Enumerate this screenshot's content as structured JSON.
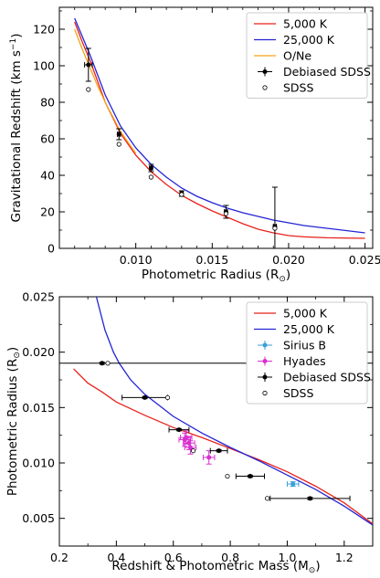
{
  "chart_data": [
    {
      "type": "line",
      "xlabel": "Photometric Radius (R",
      "xlabel_sub": "⊙",
      "xlabel_end": ")",
      "ylabel": "Gravitational Redshift (km s",
      "ylabel_sup": "−1",
      "ylabel_end": ")",
      "xlim": [
        0.005,
        0.0255
      ],
      "ylim": [
        0,
        132
      ],
      "xticks": [
        0.01,
        0.015,
        0.02,
        0.025
      ],
      "xtick_labels": [
        "0.010",
        "0.015",
        "0.020",
        "0.025"
      ],
      "yticks": [
        0,
        20,
        40,
        60,
        80,
        100,
        120
      ],
      "yticks_minor": [
        10,
        30,
        50,
        70,
        90,
        110,
        130
      ],
      "xticks_minor": [
        0.006,
        0.007,
        0.008,
        0.009,
        0.011,
        0.012,
        0.013,
        0.014,
        0.016,
        0.017,
        0.018,
        0.019,
        0.021,
        0.022,
        0.023,
        0.024
      ],
      "legend_position": "top-right",
      "series": [
        {
          "name": "5,000 K",
          "kind": "line",
          "color": "#e8211b",
          "x": [
            0.006,
            0.0065,
            0.007,
            0.008,
            0.009,
            0.01,
            0.011,
            0.012,
            0.013,
            0.014,
            0.015,
            0.016,
            0.017,
            0.018,
            0.019,
            0.02,
            0.021,
            0.0225,
            0.025
          ],
          "y": [
            124,
            113,
            103,
            80,
            63,
            51,
            42,
            35,
            29,
            24.5,
            20.5,
            17,
            13.5,
            10.5,
            8.5,
            7,
            6.3,
            5.8,
            5.5
          ]
        },
        {
          "name": "25,000 K",
          "kind": "line",
          "color": "#2424d6",
          "x": [
            0.006,
            0.0065,
            0.007,
            0.008,
            0.009,
            0.01,
            0.011,
            0.012,
            0.013,
            0.014,
            0.015,
            0.016,
            0.017,
            0.018,
            0.019,
            0.02,
            0.021,
            0.0225,
            0.025
          ],
          "y": [
            126,
            116,
            106,
            84,
            67,
            55,
            46,
            39,
            33,
            28.5,
            25,
            22,
            19.5,
            17.5,
            15.5,
            14,
            12.5,
            11,
            8.5
          ]
        },
        {
          "name": "O/Ne",
          "kind": "line",
          "color": "#f5a31a",
          "x": [
            0.006,
            0.0065,
            0.007,
            0.0075,
            0.008,
            0.009,
            0.01
          ],
          "y": [
            120,
            109,
            99,
            89,
            80,
            64,
            52
          ]
        },
        {
          "name": "Debiased SDSS",
          "kind": "errorbar",
          "color": "#000000",
          "x": [
            0.0069,
            0.0089,
            0.011,
            0.013,
            0.0159,
            0.0191
          ],
          "y": [
            100.5,
            62.5,
            44,
            30,
            20,
            12
          ],
          "yerr": [
            9,
            3,
            2,
            1.5,
            3.5,
            21.5
          ],
          "xerr": [
            0.00025,
            0.0001,
            0.0001,
            0.0001,
            0.0001,
            0.0001
          ]
        },
        {
          "name": "SDSS",
          "kind": "open",
          "color": "#000000",
          "x": [
            0.0069,
            0.0089,
            0.011,
            0.013,
            0.0159,
            0.0191
          ],
          "y": [
            87,
            57,
            39,
            29.5,
            19,
            11
          ]
        }
      ]
    },
    {
      "type": "line",
      "xlabel": "Redshift & Photometric Mass (M",
      "xlabel_sub": "⊙",
      "xlabel_end": ")",
      "ylabel": "Photometric Radius (R",
      "ylabel_sub": "⊙",
      "ylabel_end": ")",
      "xlim": [
        0.2,
        1.3
      ],
      "ylim": [
        0.0025,
        0.025
      ],
      "xticks": [
        0.2,
        0.4,
        0.6,
        0.8,
        1.0,
        1.2
      ],
      "xtick_labels": [
        "0.2",
        "0.4",
        "0.6",
        "0.8",
        "1.0",
        "1.2"
      ],
      "xticks_minor": [
        0.3,
        0.5,
        0.7,
        0.9,
        1.1
      ],
      "yticks": [
        0.005,
        0.01,
        0.015,
        0.02,
        0.025
      ],
      "ytick_labels": [
        "0.005",
        "0.010",
        "0.015",
        "0.020",
        "0.025"
      ],
      "yticks_minor": [
        0.0075,
        0.0125,
        0.0175,
        0.0225
      ],
      "legend_position": "top-right",
      "series": [
        {
          "name": "5,000 K",
          "kind": "line",
          "color": "#e8211b",
          "x": [
            0.25,
            0.3,
            0.35,
            0.4,
            0.5,
            0.6,
            0.7,
            0.8,
            0.9,
            1.0,
            1.1,
            1.2,
            1.3
          ],
          "y": [
            0.0185,
            0.0172,
            0.0164,
            0.0155,
            0.0143,
            0.0132,
            0.0123,
            0.0113,
            0.0103,
            0.0092,
            0.0079,
            0.0064,
            0.0045
          ]
        },
        {
          "name": "25,000 K",
          "kind": "line",
          "color": "#2424d6",
          "x": [
            0.3,
            0.33,
            0.36,
            0.39,
            0.41,
            0.45,
            0.5,
            0.6,
            0.7,
            0.8,
            0.9,
            1.0,
            1.1,
            1.2,
            1.3
          ],
          "y": [
            0.029,
            0.025,
            0.022,
            0.02,
            0.019,
            0.0175,
            0.0162,
            0.0142,
            0.0127,
            0.0114,
            0.0102,
            0.0089,
            0.0076,
            0.0061,
            0.0044
          ]
        },
        {
          "name": "Sirius B",
          "kind": "errorbar",
          "color": "#3aa0d8",
          "x": [
            1.02
          ],
          "y": [
            0.0081
          ],
          "xerr": [
            0.02
          ],
          "yerr": [
            0.0002
          ]
        },
        {
          "name": "Hyades",
          "kind": "errorbar",
          "color": "#d92fd1",
          "x": [
            0.64,
            0.655,
            0.66,
            0.645,
            0.725
          ],
          "y": [
            0.0121,
            0.0118,
            0.0114,
            0.0123,
            0.0105
          ],
          "xerr": [
            0.02,
            0.02,
            0.02,
            0.02,
            0.02
          ],
          "yerr": [
            0.0006,
            0.0006,
            0.0006,
            0.0006,
            0.0006
          ]
        },
        {
          "name": "Debiased SDSS",
          "kind": "errorbar",
          "color": "#000000",
          "x": [
            0.35,
            0.5,
            0.62,
            0.76,
            0.87,
            1.08
          ],
          "y": [
            0.019,
            0.0159,
            0.013,
            0.0111,
            0.0088,
            0.0068
          ],
          "xerr": [
            1.0,
            0.08,
            0.035,
            0.03,
            0.05,
            0.14
          ],
          "yerr": [
            0.0001,
            0.0001,
            0.0001,
            0.0001,
            0.0001,
            0.0001
          ]
        },
        {
          "name": "SDSS",
          "kind": "open",
          "color": "#000000",
          "x": [
            0.37,
            0.58,
            0.67,
            0.79,
            0.93
          ],
          "y": [
            0.019,
            0.0159,
            0.0111,
            0.0088,
            0.0068
          ]
        }
      ]
    }
  ]
}
